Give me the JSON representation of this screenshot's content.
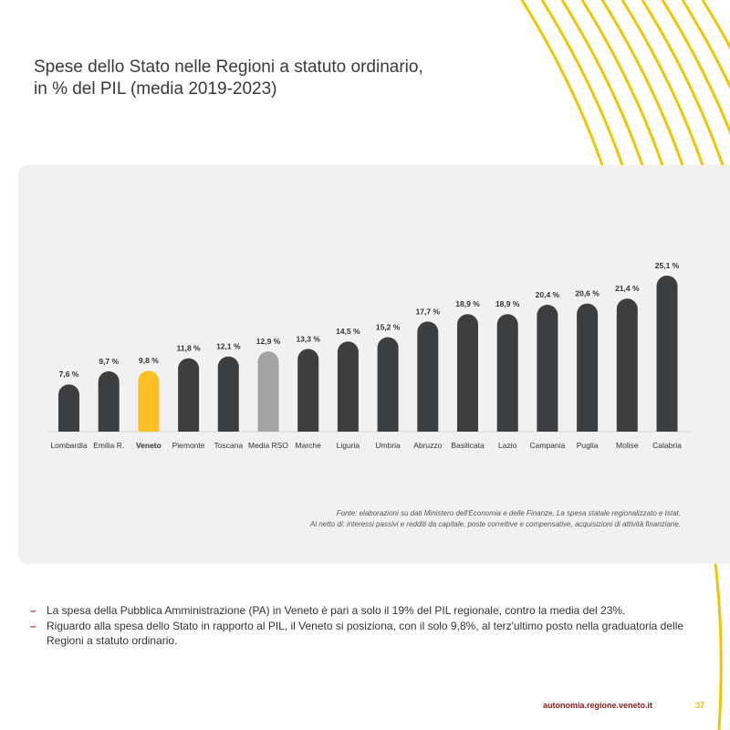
{
  "title": {
    "line1": "Spese dello Stato nelle Regioni a statuto ordinario,",
    "line2": "in % del PIL (media 2019-2023)"
  },
  "chart_data": {
    "type": "bar",
    "categories": [
      "Lombardia",
      "Emilia R.",
      "Veneto",
      "Piemonte",
      "Toscana",
      "Media RSO",
      "Marche",
      "Liguria",
      "Umbria",
      "Abruzzo",
      "Basilicata",
      "Lazio",
      "Campania",
      "Puglia",
      "Molise",
      "Calabria"
    ],
    "values": [
      7.6,
      9.7,
      9.8,
      11.8,
      12.1,
      12.9,
      13.3,
      14.5,
      15.2,
      17.7,
      18.9,
      18.9,
      20.4,
      20.6,
      21.4,
      25.1
    ],
    "value_labels": [
      "7,6 %",
      "9,7 %",
      "9,8 %",
      "11,8 %",
      "12,1 %",
      "12,9 %",
      "13,3 %",
      "14,5 %",
      "15,2 %",
      "17,7 %",
      "18,9 %",
      "18,9 %",
      "20,4 %",
      "20,6 %",
      "21,4 %",
      "25,1 %"
    ],
    "highlight": {
      "Veneto": "#fbbf24",
      "Media RSO": "#a3a3a3"
    },
    "bar_color": "#3d3e40",
    "bold_categories": [
      "Veneto"
    ],
    "ylim": [
      0,
      25.1
    ],
    "grid": false,
    "legend": "none"
  },
  "source": {
    "line1": "Fonte: elaborazioni su dati Ministero dell'Economia e delle Finanze, La spesa statale regionalizzato e Istat.",
    "line2": "Al netto di: interessi passivi e redditi da capitale, poste correttive e compensative, acquisizioni di attività finanziarie."
  },
  "notes": [
    {
      "dash": "–",
      "text": "La spesa della Pubblica Amministrazione (PA) in Veneto è pari a solo il 19% del PIL regionale, contro la media del 23%."
    },
    {
      "dash": "–",
      "text": "Riguardo alla spesa dello Stato in rapporto al PIL, il Veneto si posiziona, con il solo 9,8%, al terz'ultimo posto nella graduatoria delle Regioni a statuto ordinario."
    }
  ],
  "footer": {
    "url": "autonomia.regione.veneto.it",
    "page": "37"
  },
  "colors": {
    "accent_yellow": "#f5b700",
    "accent_red": "#c0392b"
  }
}
